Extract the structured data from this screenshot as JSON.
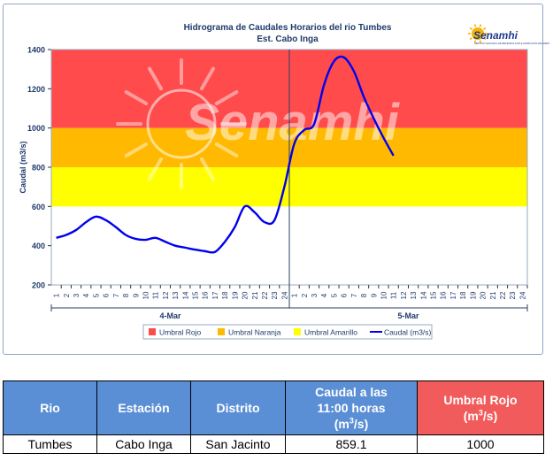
{
  "chart_data": {
    "type": "line",
    "title": "Hidrograma de Caudales Horarios del rio Tumbes",
    "subtitle": "Est. Cabo Inga",
    "ylabel": "Caudal  (m3/s)",
    "ylim": [
      200,
      1400
    ],
    "yticks": [
      "200",
      "400",
      "600",
      "800",
      "1000",
      "1200",
      "1400"
    ],
    "xtick_labels": [
      "1",
      "2",
      "3",
      "4",
      "5",
      "6",
      "7",
      "8",
      "9",
      "10",
      "11",
      "12",
      "13",
      "14",
      "15",
      "16",
      "17",
      "18",
      "19",
      "20",
      "21",
      "22",
      "23",
      "24",
      "1",
      "2",
      "3",
      "4",
      "5",
      "6",
      "7",
      "8",
      "9",
      "10",
      "11",
      "12",
      "13",
      "14",
      "15",
      "16",
      "17",
      "18",
      "19",
      "20",
      "21",
      "22",
      "23",
      "24"
    ],
    "day_labels": [
      "4-Mar",
      "5-Mar"
    ],
    "bands": [
      {
        "name": "Umbral Rojo",
        "from": 1000,
        "to": 1400,
        "color": "#ff4b4b"
      },
      {
        "name": "Umbral Naranja",
        "from": 800,
        "to": 1000,
        "color": "#ffb900"
      },
      {
        "name": "Umbral Amarillo",
        "from": 600,
        "to": 800,
        "color": "#ffff00"
      }
    ],
    "series": [
      {
        "name": "Caudal (m3/s)",
        "color": "#0000ee",
        "values": [
          440,
          455,
          480,
          520,
          548,
          530,
          495,
          455,
          435,
          430,
          440,
          420,
          400,
          390,
          380,
          372,
          368,
          420,
          495,
          600,
          570,
          520,
          530,
          700,
          920,
          990,
          1020,
          1220,
          1340,
          1360,
          1290,
          1160,
          1050,
          950,
          859.1
        ]
      }
    ],
    "legend": [
      "Umbral Rojo",
      "Umbral Naranja",
      "Umbral Amarillo",
      "Caudal (m3/s)"
    ],
    "legend_position": "bottom"
  },
  "logo": {
    "text": "Senamhi",
    "small": "SERVICIO NACIONAL DE METEOROLOGÍA E HIDROLOGÍA DEL PERÚ"
  },
  "watermark": "Senamhi",
  "colors": {
    "axis": "#8fa6c8",
    "label": "#1f3a6b",
    "table_header": "#5b8fd5",
    "table_header_red": "#f25b5b"
  },
  "table": {
    "headers": {
      "rio": "Rio",
      "estacion": "Estación",
      "distrito": "Distrito",
      "caudal_line1": "Caudal a las",
      "caudal_line2": "11:00 horas",
      "caudal_unit_pre": "(m",
      "caudal_unit_sup": "3",
      "caudal_unit_post": "/s)",
      "umbral_line1": "Umbral Rojo",
      "umbral_unit_pre": "(m",
      "umbral_unit_sup": "3",
      "umbral_unit_post": "/s)"
    },
    "row": {
      "rio": "Tumbes",
      "estacion": "Cabo Inga",
      "distrito": "San Jacinto",
      "caudal": "859.1",
      "umbral": "1000"
    }
  }
}
